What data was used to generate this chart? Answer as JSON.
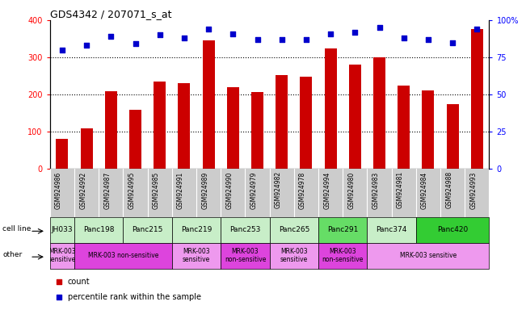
{
  "title": "GDS4342 / 207071_s_at",
  "samples": [
    "GSM924986",
    "GSM924992",
    "GSM924987",
    "GSM924995",
    "GSM924985",
    "GSM924991",
    "GSM924989",
    "GSM924990",
    "GSM924979",
    "GSM924982",
    "GSM924978",
    "GSM924994",
    "GSM924980",
    "GSM924983",
    "GSM924981",
    "GSM924984",
    "GSM924988",
    "GSM924993"
  ],
  "counts": [
    80,
    110,
    210,
    160,
    235,
    230,
    345,
    220,
    207,
    252,
    247,
    323,
    280,
    300,
    225,
    212,
    175,
    375
  ],
  "percentiles": [
    80,
    83,
    89,
    84,
    90,
    88,
    94,
    91,
    87,
    87,
    87,
    91,
    92,
    95,
    88,
    87,
    85,
    94
  ],
  "cell_lines": [
    {
      "name": "JH033",
      "start": 0,
      "end": 1,
      "color": "#c8eec8"
    },
    {
      "name": "Panc198",
      "start": 1,
      "end": 3,
      "color": "#c8eec8"
    },
    {
      "name": "Panc215",
      "start": 3,
      "end": 5,
      "color": "#c8eec8"
    },
    {
      "name": "Panc219",
      "start": 5,
      "end": 7,
      "color": "#c8eec8"
    },
    {
      "name": "Panc253",
      "start": 7,
      "end": 9,
      "color": "#c8eec8"
    },
    {
      "name": "Panc265",
      "start": 9,
      "end": 11,
      "color": "#c8eec8"
    },
    {
      "name": "Panc291",
      "start": 11,
      "end": 13,
      "color": "#66dd66"
    },
    {
      "name": "Panc374",
      "start": 13,
      "end": 15,
      "color": "#c8eec8"
    },
    {
      "name": "Panc420",
      "start": 15,
      "end": 18,
      "color": "#33cc33"
    }
  ],
  "other_rows": [
    {
      "label": "MRK-003\nsensitive",
      "start": 0,
      "end": 1,
      "color": "#ee99ee"
    },
    {
      "label": "MRK-003 non-sensitive",
      "start": 1,
      "end": 5,
      "color": "#dd44dd"
    },
    {
      "label": "MRK-003\nsensitive",
      "start": 5,
      "end": 7,
      "color": "#ee99ee"
    },
    {
      "label": "MRK-003\nnon-sensitive",
      "start": 7,
      "end": 9,
      "color": "#dd44dd"
    },
    {
      "label": "MRK-003\nsensitive",
      "start": 9,
      "end": 11,
      "color": "#ee99ee"
    },
    {
      "label": "MRK-003\nnon-sensitive",
      "start": 11,
      "end": 13,
      "color": "#dd44dd"
    },
    {
      "label": "MRK-003 sensitive",
      "start": 13,
      "end": 18,
      "color": "#ee99ee"
    }
  ],
  "bar_color": "#cc0000",
  "scatter_color": "#0000cc",
  "left_ylim": [
    0,
    400
  ],
  "right_ylim": [
    0,
    100
  ],
  "left_yticks": [
    0,
    100,
    200,
    300,
    400
  ],
  "right_yticks": [
    0,
    25,
    50,
    75,
    100
  ],
  "right_yticklabels": [
    "0",
    "25",
    "50",
    "75",
    "100%"
  ],
  "grid_values": [
    100,
    200,
    300
  ],
  "xtick_bg_color": "#cccccc"
}
